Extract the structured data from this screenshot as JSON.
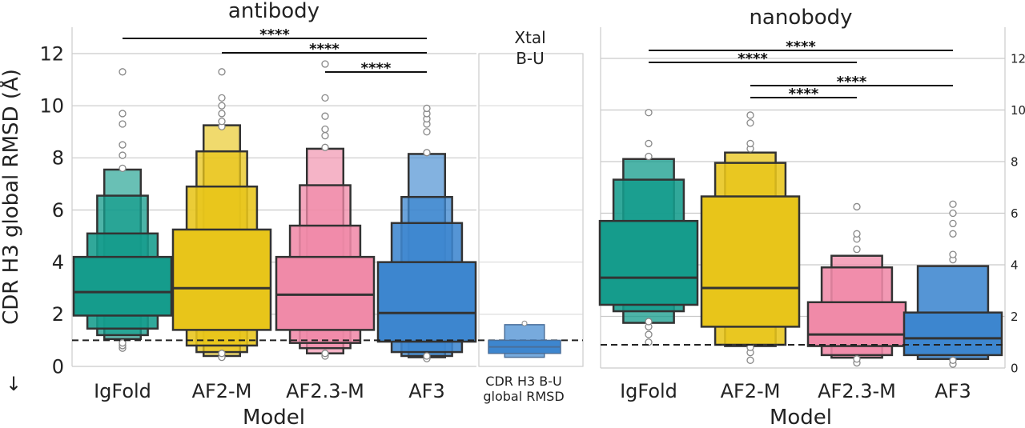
{
  "chart_data": [
    {
      "panel": "antibody",
      "type": "boxen",
      "title": "antibody",
      "xlabel": "Model",
      "ylabel": "CDR H3 global RMSD (Å)",
      "ylabel_arrow": "↓",
      "ylim": [
        0,
        13
      ],
      "yticks": [
        0,
        2,
        4,
        6,
        8,
        10,
        12
      ],
      "grid": true,
      "reference_line": 1.0,
      "categories": [
        "IgFold",
        "AF2-M",
        "AF2.3-M",
        "AF3"
      ],
      "series": [
        {
          "name": "IgFold",
          "color": "#159c8c",
          "median": 2.85,
          "boxes": [
            [
              1.95,
              4.2
            ],
            [
              1.45,
              5.1
            ],
            [
              1.2,
              6.55
            ],
            [
              1.05,
              7.55
            ]
          ],
          "outliers": [
            0.7,
            0.8,
            0.9,
            7.6,
            8.1,
            8.5,
            9.3,
            9.7,
            11.3
          ]
        },
        {
          "name": "AF2-M",
          "color": "#e8c51a",
          "median": 3.0,
          "boxes": [
            [
              1.4,
              5.25
            ],
            [
              0.8,
              6.9
            ],
            [
              0.55,
              8.25
            ],
            [
              0.4,
              9.25
            ]
          ],
          "outliers": [
            0.35,
            0.5,
            9.2,
            9.4,
            9.7,
            10.0,
            10.3,
            11.3
          ]
        },
        {
          "name": "AF2.3-M",
          "color": "#f08aa8",
          "median": 2.75,
          "boxes": [
            [
              1.4,
              4.2
            ],
            [
              0.9,
              5.4
            ],
            [
              0.7,
              6.95
            ],
            [
              0.5,
              8.35
            ]
          ],
          "outliers": [
            0.4,
            0.5,
            8.4,
            8.85,
            9.1,
            9.6,
            10.3,
            11.6
          ]
        },
        {
          "name": "AF3",
          "color": "#3d86cf",
          "median": 2.05,
          "boxes": [
            [
              0.95,
              4.0
            ],
            [
              0.55,
              5.5
            ],
            [
              0.4,
              6.5
            ],
            [
              0.35,
              8.15
            ]
          ],
          "outliers": [
            0.3,
            0.4,
            8.2,
            9.0,
            9.3,
            9.5,
            9.7,
            9.9
          ]
        }
      ],
      "significance": [
        {
          "from": "IgFold",
          "to": "AF3",
          "label": "****"
        },
        {
          "from": "AF2-M",
          "to": "AF3",
          "label": "****"
        },
        {
          "from": "AF2.3-M",
          "to": "AF3",
          "label": "****"
        }
      ],
      "inset": {
        "title_line1": "Xtal",
        "title_line2": "B-U",
        "xlabel_line1": "CDR H3 B-U",
        "xlabel_line2": "global RMSD",
        "color": "#3d86cf",
        "median": 0.75,
        "boxes": [
          [
            0.5,
            1.0
          ],
          [
            0.35,
            1.6
          ]
        ],
        "outliers": [
          1.65
        ]
      }
    },
    {
      "panel": "nanobody",
      "type": "boxen",
      "title": "nanobody",
      "xlabel": "Model",
      "ylim": [
        0,
        13
      ],
      "yticks": [
        0,
        2,
        4,
        6,
        8,
        10,
        12
      ],
      "grid": true,
      "reference_line": 0.9,
      "categories": [
        "IgFold",
        "AF2-M",
        "AF2.3-M",
        "AF3"
      ],
      "series": [
        {
          "name": "IgFold",
          "color": "#159c8c",
          "median": 3.5,
          "boxes": [
            [
              2.45,
              5.7
            ],
            [
              2.2,
              7.3
            ],
            [
              1.75,
              8.1
            ]
          ],
          "outliers": [
            1.0,
            1.3,
            1.6,
            1.8,
            8.2,
            8.7,
            9.9
          ]
        },
        {
          "name": "AF2-M",
          "color": "#e8c51a",
          "median": 3.1,
          "boxes": [
            [
              1.6,
              6.65
            ],
            [
              0.9,
              7.95
            ],
            [
              0.85,
              8.35
            ]
          ],
          "outliers": [
            0.3,
            0.6,
            0.8,
            8.5,
            8.7,
            9.5,
            9.8
          ]
        },
        {
          "name": "AF2.3-M",
          "color": "#f08aa8",
          "median": 1.3,
          "boxes": [
            [
              0.85,
              2.55
            ],
            [
              0.5,
              3.9
            ],
            [
              0.4,
              4.35
            ]
          ],
          "outliers": [
            0.2,
            0.35,
            4.6,
            5.0,
            5.2,
            6.25
          ]
        },
        {
          "name": "AF3",
          "color": "#3d86cf",
          "median": 1.15,
          "boxes": [
            [
              0.5,
              2.15
            ],
            [
              0.35,
              3.95
            ]
          ],
          "outliers": [
            0.15,
            0.3,
            4.2,
            4.4,
            5.2,
            5.6,
            6.0,
            6.35
          ]
        }
      ],
      "significance": [
        {
          "from": "IgFold",
          "to": "AF3",
          "label": "****"
        },
        {
          "from": "IgFold",
          "to": "AF2.3-M",
          "label": "****"
        },
        {
          "from": "AF2-M",
          "to": "AF3",
          "label": "****"
        },
        {
          "from": "AF2-M",
          "to": "AF2.3-M",
          "label": "****"
        }
      ]
    }
  ]
}
